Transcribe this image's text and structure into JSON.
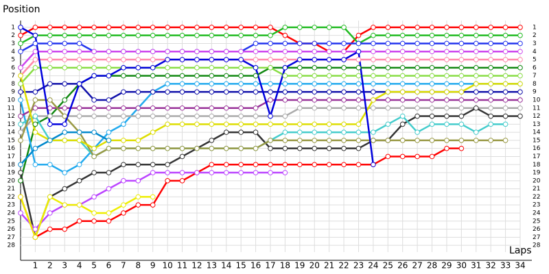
{
  "chart_data": {
    "type": "line",
    "y_title": "Position",
    "x_title": "Laps",
    "x": [
      0,
      1,
      2,
      3,
      4,
      5,
      6,
      7,
      8,
      9,
      10,
      11,
      12,
      13,
      14,
      15,
      16,
      17,
      18,
      19,
      20,
      21,
      22,
      23,
      24,
      25,
      26,
      27,
      28,
      29,
      30,
      31,
      32,
      33,
      34
    ],
    "xlim": [
      0,
      34
    ],
    "xticks": [
      1,
      2,
      3,
      4,
      5,
      6,
      7,
      8,
      9,
      10,
      11,
      12,
      13,
      14,
      15,
      16,
      17,
      18,
      19,
      20,
      21,
      22,
      23,
      24,
      25,
      26,
      27,
      28,
      29,
      30,
      31,
      32,
      33,
      34
    ],
    "ylim": [
      28.5,
      0.5
    ],
    "yticks": [
      1,
      2,
      3,
      4,
      5,
      6,
      7,
      8,
      9,
      10,
      11,
      12,
      13,
      14,
      15,
      16,
      17,
      18,
      19,
      20,
      21,
      22,
      23,
      24,
      25,
      26,
      27,
      28
    ],
    "grid": true,
    "series": [
      {
        "color": "#ff0000",
        "values": [
          2,
          1,
          1,
          1,
          1,
          1,
          1,
          1,
          1,
          1,
          1,
          1,
          1,
          1,
          1,
          1,
          1,
          1,
          2,
          3,
          3,
          4,
          4,
          2,
          1,
          1,
          1,
          1,
          1,
          1,
          1,
          1,
          1,
          1,
          1
        ]
      },
      {
        "color": "#22bb22",
        "values": [
          3,
          2,
          2,
          2,
          2,
          2,
          2,
          2,
          2,
          2,
          2,
          2,
          2,
          2,
          2,
          2,
          2,
          2,
          1,
          1,
          1,
          1,
          1,
          3,
          2,
          2,
          2,
          2,
          2,
          2,
          2,
          2,
          2,
          2,
          2
        ]
      },
      {
        "color": "#2233ee",
        "values": [
          4,
          3,
          3,
          3,
          3,
          4,
          4,
          4,
          4,
          4,
          4,
          4,
          4,
          4,
          4,
          4,
          3,
          3,
          3,
          3,
          3,
          3,
          3,
          3,
          3,
          3,
          3,
          3,
          3,
          3,
          3,
          3,
          3,
          3,
          3
        ]
      },
      {
        "color": "#cc44ee",
        "values": [
          6,
          4,
          4,
          4,
          4,
          4,
          4,
          4,
          4,
          4,
          4,
          4,
          4,
          4,
          4,
          4,
          4,
          4,
          4,
          4,
          4,
          4,
          4,
          4,
          4,
          4,
          4,
          4,
          4,
          4,
          4,
          4,
          4,
          4,
          4
        ]
      },
      {
        "color": "#ff88aa",
        "values": [
          7,
          5,
          5,
          5,
          5,
          5,
          5,
          5,
          5,
          5,
          5,
          5,
          5,
          5,
          5,
          5,
          5,
          5,
          5,
          5,
          5,
          5,
          5,
          5,
          5,
          5,
          5,
          5,
          5,
          5,
          5,
          5,
          5,
          5,
          5
        ]
      },
      {
        "color": "#118811",
        "values": [
          20,
          13,
          12,
          10,
          8,
          7,
          7,
          7,
          7,
          7,
          7,
          7,
          7,
          7,
          7,
          7,
          7,
          6,
          6,
          6,
          6,
          6,
          6,
          6,
          6,
          6,
          6,
          6,
          6,
          6,
          6,
          6,
          6,
          6,
          6
        ]
      },
      {
        "color": "#88dd44",
        "values": [
          8,
          6,
          6,
          6,
          6,
          6,
          6,
          6,
          6,
          6,
          6,
          6,
          6,
          6,
          6,
          6,
          6,
          6,
          7,
          7,
          7,
          7,
          7,
          7,
          7,
          7,
          7,
          7,
          7,
          7,
          7,
          7,
          7,
          7,
          7
        ]
      },
      {
        "color": "#22aaee",
        "values": [
          10,
          18,
          18,
          19,
          18,
          16,
          14,
          13,
          11,
          9,
          8,
          8,
          8,
          8,
          8,
          8,
          8,
          8,
          8,
          8,
          8,
          8,
          8,
          8,
          8,
          8,
          8,
          8,
          8,
          8,
          8,
          8,
          8,
          8,
          8
        ]
      },
      {
        "color": "#1111aa",
        "values": [
          9,
          9,
          8,
          8,
          8,
          10,
          10,
          9,
          9,
          9,
          9,
          9,
          9,
          9,
          9,
          9,
          9,
          9,
          9,
          9,
          9,
          9,
          9,
          9,
          9,
          9,
          9,
          9,
          9,
          9,
          9,
          9,
          9,
          9,
          9
        ]
      },
      {
        "color": "#993399",
        "values": [
          12,
          11,
          11,
          11,
          11,
          11,
          11,
          11,
          11,
          11,
          11,
          11,
          11,
          11,
          11,
          11,
          11,
          10,
          10,
          10,
          10,
          10,
          10,
          10,
          10,
          10,
          10,
          10,
          10,
          10,
          10,
          10,
          10,
          10,
          10
        ]
      },
      {
        "color": "#aaaaaa",
        "values": [
          14,
          12,
          12,
          12,
          12,
          12,
          12,
          12,
          12,
          12,
          12,
          12,
          12,
          12,
          12,
          12,
          12,
          12,
          12,
          11,
          11,
          11,
          11,
          11,
          11,
          11,
          11,
          11,
          11,
          11,
          11,
          11,
          11,
          11,
          11
        ]
      },
      {
        "color": "#333333",
        "values": [
          19,
          27,
          22,
          21,
          20,
          19,
          19,
          18,
          18,
          18,
          18,
          17,
          16,
          15,
          14,
          14,
          14,
          16,
          16,
          16,
          16,
          16,
          16,
          16,
          15,
          15,
          13,
          12,
          12,
          12,
          12,
          11,
          12,
          12,
          12
        ]
      },
      {
        "color": "#44cccc",
        "values": [
          13,
          12,
          15,
          15,
          15,
          17,
          16,
          16,
          16,
          16,
          16,
          16,
          16,
          16,
          16,
          16,
          16,
          15,
          14,
          14,
          14,
          14,
          14,
          14,
          14,
          13,
          12,
          14,
          13,
          13,
          13,
          14,
          13,
          13,
          null
        ]
      },
      {
        "color": "#999944",
        "values": [
          15,
          10,
          10,
          12,
          14,
          17,
          16,
          16,
          16,
          16,
          16,
          16,
          16,
          16,
          16,
          16,
          16,
          15,
          15,
          15,
          15,
          15,
          15,
          15,
          15,
          15,
          15,
          15,
          15,
          15,
          15,
          15,
          15,
          15,
          null
        ]
      },
      {
        "color": "#dddd00",
        "values": [
          7,
          14,
          15,
          15,
          15,
          16,
          15,
          15,
          15,
          14,
          13,
          13,
          13,
          13,
          13,
          13,
          13,
          13,
          13,
          13,
          13,
          13,
          13,
          13,
          10,
          9,
          9,
          9,
          9,
          9,
          9,
          8,
          8,
          8,
          8
        ]
      },
      {
        "color": "#ff0000",
        "values": [
          22,
          27,
          26,
          26,
          25,
          25,
          25,
          24,
          23,
          23,
          20,
          20,
          19,
          18,
          18,
          18,
          18,
          18,
          18,
          18,
          18,
          18,
          18,
          18,
          18,
          17,
          17,
          17,
          17,
          16,
          16,
          null,
          null,
          null,
          null
        ]
      },
      {
        "color": "#bb44ff",
        "values": [
          24,
          26,
          24,
          23,
          23,
          22,
          21,
          20,
          20,
          19,
          19,
          19,
          19,
          19,
          19,
          19,
          19,
          19,
          19,
          null,
          null,
          null,
          null,
          null,
          null,
          null,
          null,
          null,
          null,
          null,
          null,
          null,
          null,
          null,
          null
        ]
      },
      {
        "color": "#0000dd",
        "values": [
          1,
          2,
          13,
          13,
          8,
          7,
          7,
          6,
          6,
          6,
          5,
          5,
          5,
          5,
          5,
          5,
          6,
          12,
          6,
          5,
          5,
          5,
          5,
          4,
          18,
          null,
          null,
          null,
          null,
          null,
          null,
          null,
          null,
          null,
          null
        ]
      },
      {
        "color": "#eeee00",
        "values": [
          22,
          27,
          22,
          23,
          23,
          24,
          24,
          23,
          22,
          22,
          null,
          null,
          null,
          null,
          null,
          null,
          null,
          null,
          null,
          null,
          null,
          null,
          null,
          null,
          null,
          null,
          null,
          null,
          null,
          null,
          null,
          null,
          null,
          null,
          null
        ]
      },
      {
        "color": "#0088cc",
        "values": [
          18,
          16,
          15,
          14,
          14,
          14,
          15,
          null,
          null,
          null,
          null,
          null,
          null,
          null,
          null,
          null,
          null,
          null,
          null,
          null,
          null,
          null,
          null,
          null,
          null,
          null,
          null,
          null,
          null,
          null,
          null,
          null,
          null,
          null,
          null
        ]
      }
    ]
  }
}
